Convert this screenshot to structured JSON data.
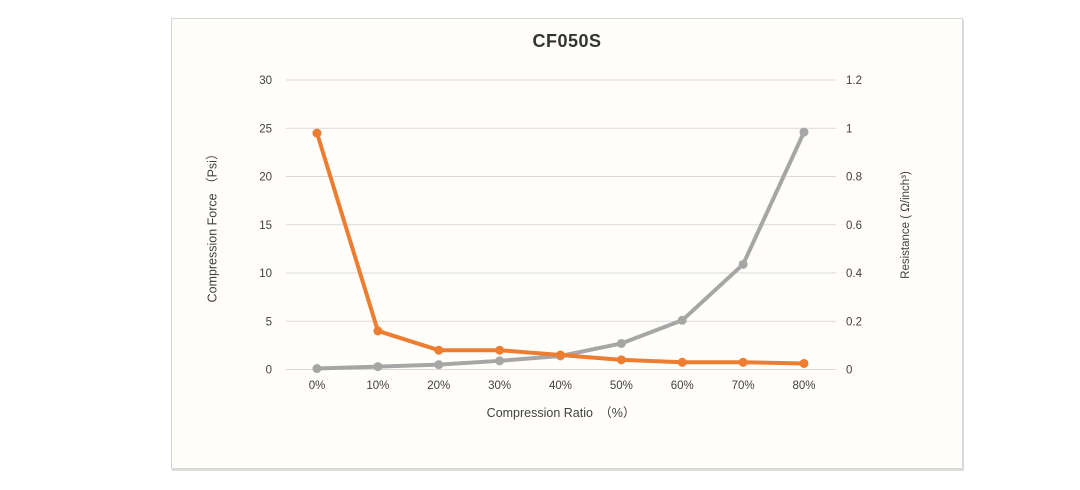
{
  "chart_data": {
    "type": "line",
    "title": "CF050S",
    "xlabel": "Compression Ratio　（%）",
    "categories": [
      "0%",
      "10%",
      "20%",
      "30%",
      "40%",
      "50%",
      "60%",
      "70%",
      "80%"
    ],
    "series": [
      {
        "name": "Compression Force",
        "axis": "left",
        "color": "#A6A6A6",
        "values": [
          0.1,
          0.3,
          0.5,
          0.9,
          1.4,
          2.7,
          5.1,
          10.9,
          24.6
        ]
      },
      {
        "name": "Resistance",
        "axis": "right",
        "color": "#ED7D31",
        "values": [
          0.98,
          0.16,
          0.08,
          0.08,
          0.06,
          0.04,
          0.03,
          0.03,
          0.025
        ]
      }
    ],
    "left_axis": {
      "label": "Compression Force （Psi）",
      "min": 0,
      "max": 30,
      "step": 5,
      "ticks": [
        "0",
        "5",
        "10",
        "15",
        "20",
        "25",
        "30"
      ]
    },
    "right_axis": {
      "label": "Resistance ( Ω/inch³)",
      "min": 0,
      "max": 1.2,
      "step": 0.2,
      "ticks": [
        "0",
        "0.2",
        "0.4",
        "0.6",
        "0.8",
        "1",
        "1.2"
      ]
    },
    "grid": true,
    "gridline_color": "#d9d9d9",
    "legend": "none"
  }
}
